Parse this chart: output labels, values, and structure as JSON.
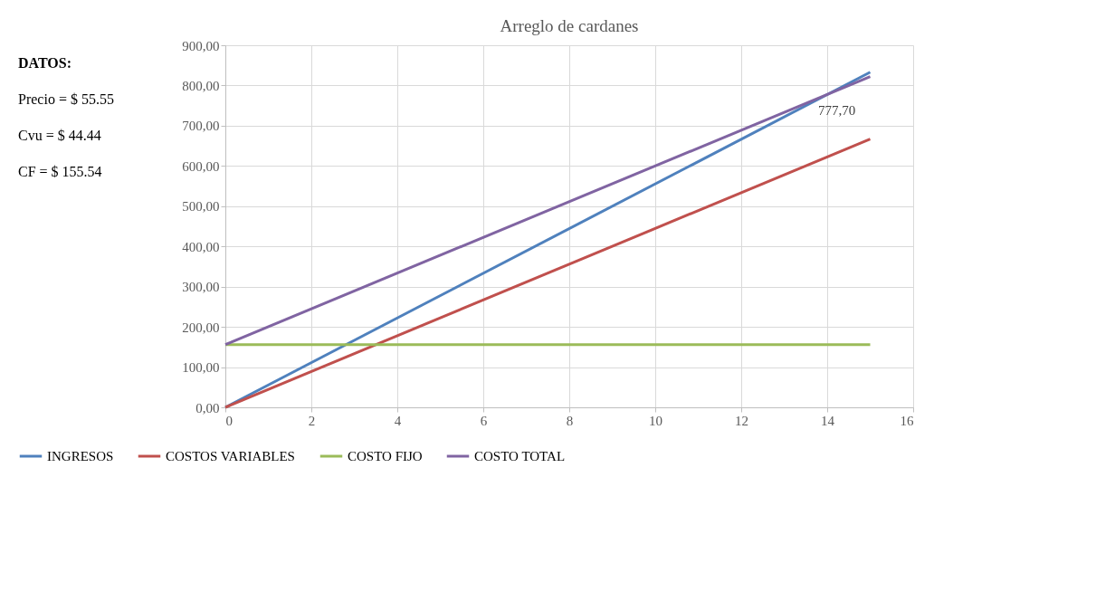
{
  "chart_data": {
    "type": "line",
    "title": "Arreglo de cardanes",
    "x": [
      0,
      15
    ],
    "series": [
      {
        "name": "INGRESOS",
        "color": "#4f81bd",
        "values": [
          0,
          833
        ]
      },
      {
        "name": "COSTOS VARIABLES",
        "color": "#c0504d",
        "values": [
          0,
          667
        ]
      },
      {
        "name": "COSTO FIJO",
        "color": "#9bbb59",
        "values": [
          156,
          156
        ]
      },
      {
        "name": "COSTO TOTAL",
        "color": "#8064a2",
        "values": [
          156,
          822
        ]
      }
    ],
    "xlim": [
      0,
      16
    ],
    "xticks": [
      0,
      2,
      4,
      6,
      8,
      10,
      12,
      14,
      16
    ],
    "ylim": [
      0,
      900
    ],
    "yticks": [
      {
        "value": 0,
        "label": "0,00"
      },
      {
        "value": 100,
        "label": "100,00"
      },
      {
        "value": 200,
        "label": "200,00"
      },
      {
        "value": 300,
        "label": "300,00"
      },
      {
        "value": 400,
        "label": "400,00"
      },
      {
        "value": 500,
        "label": "500,00"
      },
      {
        "value": 600,
        "label": "600,00"
      },
      {
        "value": 700,
        "label": "700,00"
      },
      {
        "value": 800,
        "label": "800,00"
      },
      {
        "value": 900,
        "label": "900,00"
      }
    ],
    "grid": true,
    "legend": "bottom",
    "marker": "none",
    "line_style": "solid",
    "annotations": [
      "DATOS:",
      "Precio = $ 55.55",
      "Cvu = $ 44.44",
      "CF = $ 155.54",
      {
        "text": "777,70",
        "x": 14,
        "y": 777.7
      }
    ]
  }
}
